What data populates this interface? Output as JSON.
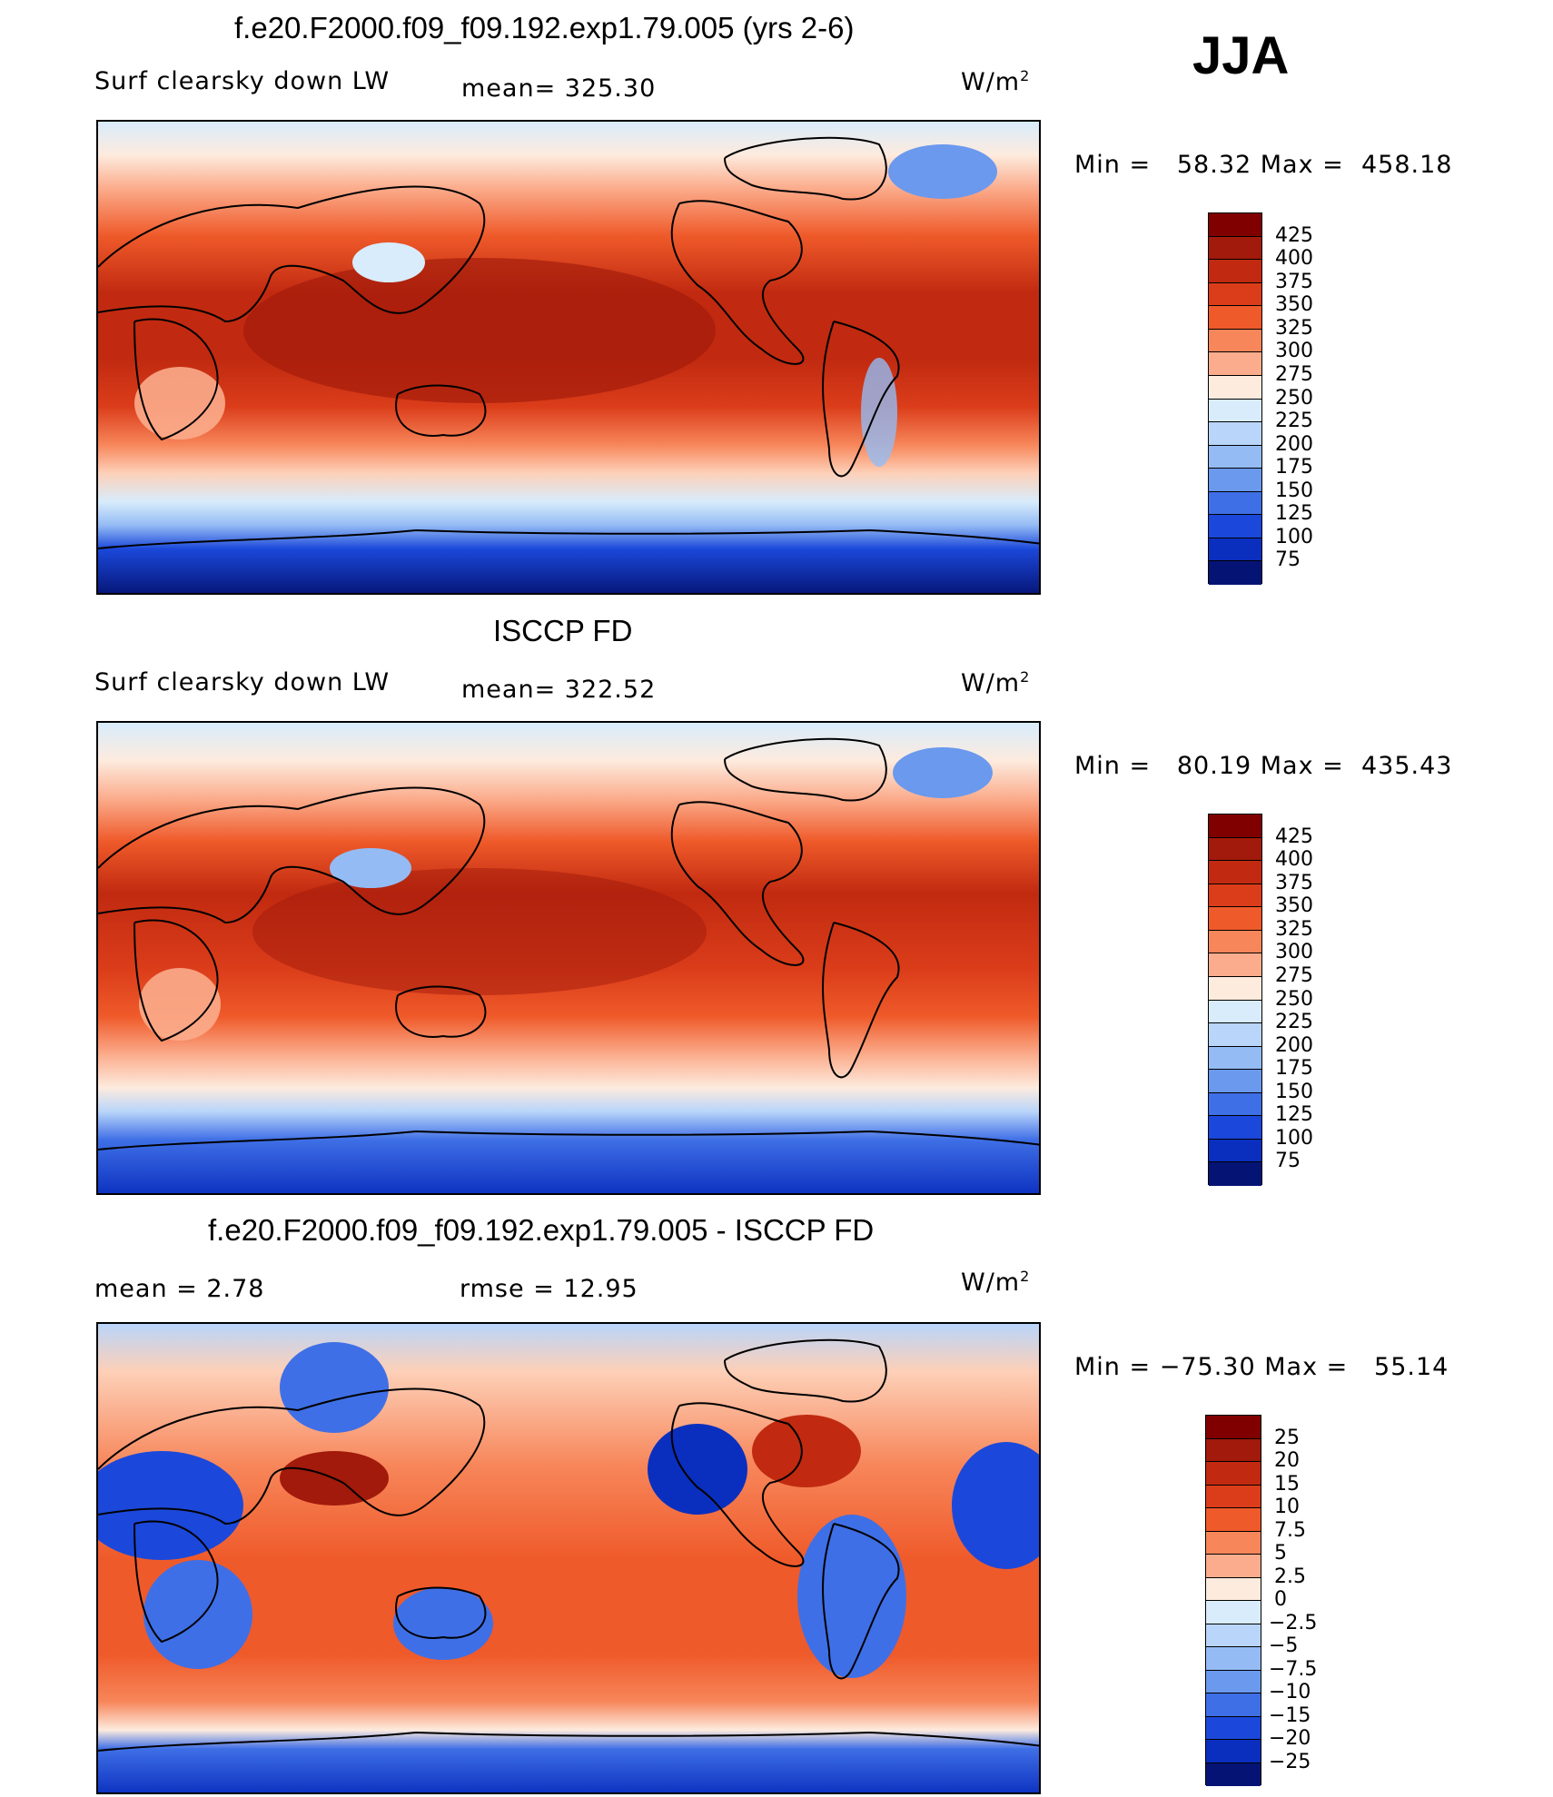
{
  "season": "JJA",
  "colors": {
    "warm": [
      "#800000",
      "#a11a0b",
      "#c12a10",
      "#db3d1a",
      "#ef5a2a",
      "#f7865a",
      "#fbac8c",
      "#fdd0b8",
      "#fdebde"
    ],
    "cool": [
      "#d8ecfc",
      "#b9d5fa",
      "#94bbf4",
      "#6a99ee",
      "#3f6fe6",
      "#1b48da",
      "#0a2fbf",
      "#071f9a",
      "#051474"
    ],
    "land_outline": "#000000"
  },
  "panels": [
    {
      "id": "model",
      "title": "f.e20.F2000.f09_f09.192.exp1.79.005 (yrs 2-6)",
      "left_label": "Surf clearsky down LW",
      "mid_label": "mean= 325.30",
      "units": "W/m",
      "units_sup": "2",
      "min_label": "Min =",
      "min_value": "58.32",
      "max_label": "Max =",
      "max_value": "458.18",
      "colorbar_labels": [
        "425",
        "400",
        "375",
        "350",
        "325",
        "300",
        "275",
        "250",
        "225",
        "200",
        "175",
        "150",
        "125",
        "100",
        "75"
      ]
    },
    {
      "id": "obs",
      "title": "ISCCP FD",
      "left_label": "Surf clearsky down LW",
      "mid_label": "mean= 322.52",
      "units": "W/m",
      "units_sup": "2",
      "min_label": "Min =",
      "min_value": "80.19",
      "max_label": "Max =",
      "max_value": "435.43",
      "colorbar_labels": [
        "425",
        "400",
        "375",
        "350",
        "325",
        "300",
        "275",
        "250",
        "225",
        "200",
        "175",
        "150",
        "125",
        "100",
        "75"
      ]
    },
    {
      "id": "diff",
      "title": "f.e20.F2000.f09_f09.192.exp1.79.005 - ISCCP FD",
      "left_label": "mean =    2.78",
      "mid_label": "rmse =    12.95",
      "units": "W/m",
      "units_sup": "2",
      "min_label": "Min =",
      "min_value": "−75.30",
      "max_label": "Max =",
      "max_value": "55.14",
      "colorbar_labels": [
        "25",
        "20",
        "15",
        "10",
        "7.5",
        "5",
        "2.5",
        "0",
        "−2.5",
        "−5",
        "−7.5",
        "−10",
        "−15",
        "−20",
        "−25"
      ]
    }
  ]
}
